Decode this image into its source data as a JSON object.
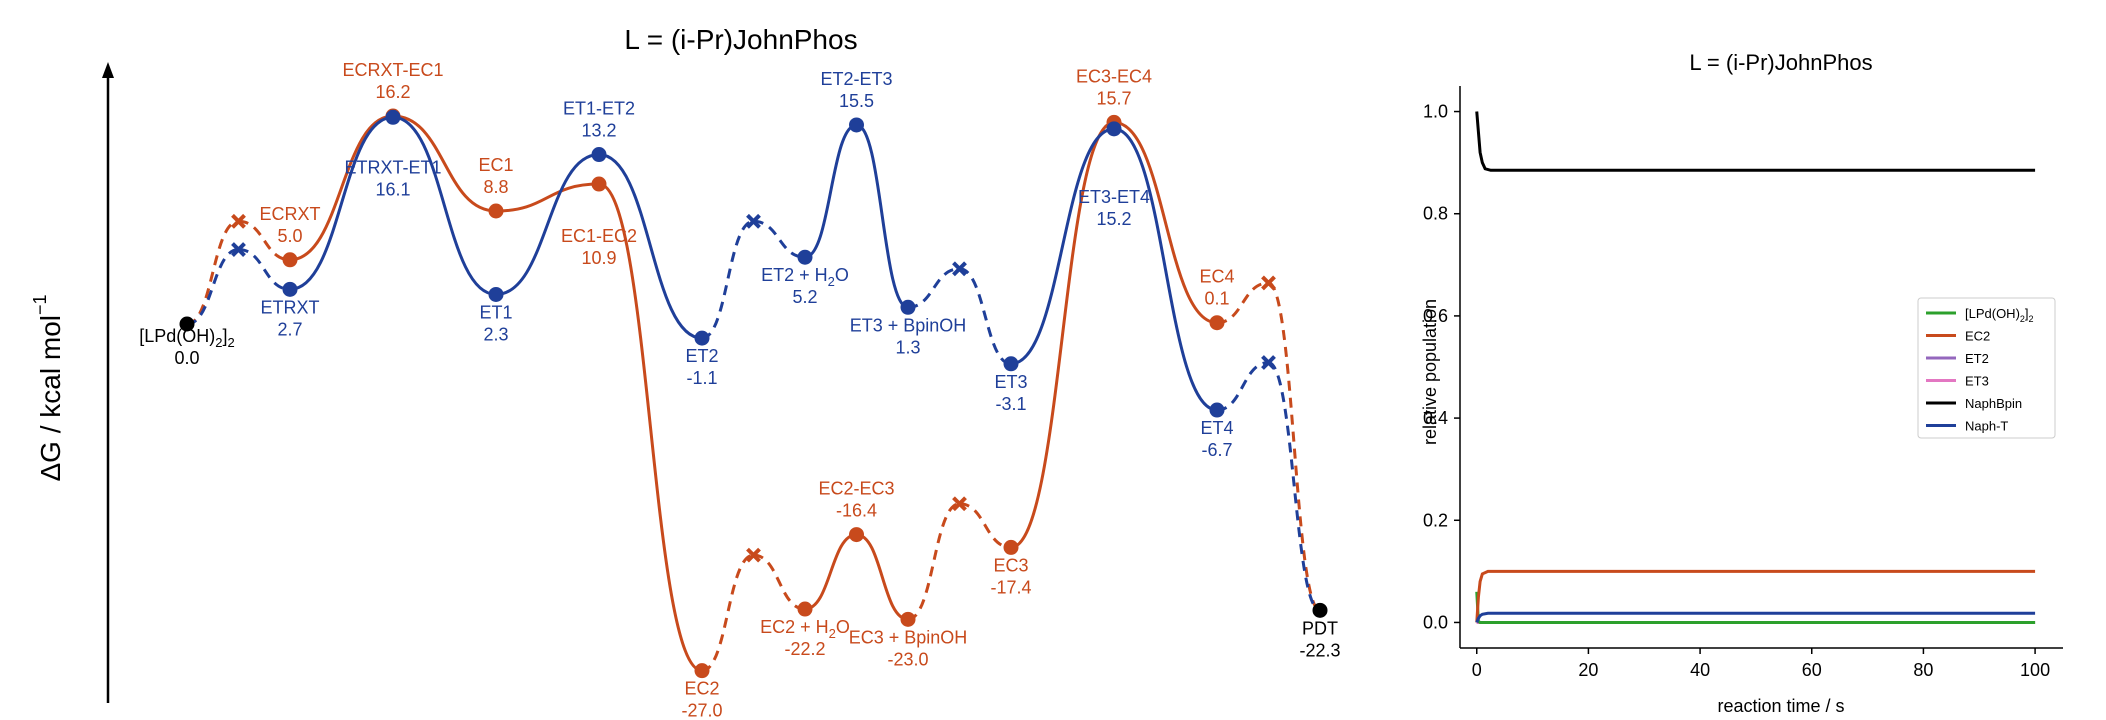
{
  "colors": {
    "orange": "#c84a1c",
    "blue": "#1f3f99",
    "black": "#000000",
    "green": "#2ca02c",
    "purple": "#9467bd",
    "pink": "#e377c2"
  },
  "chart_data": [
    {
      "type": "line",
      "title": "L = (i-Pr)JohnPhos",
      "ylabel": "ΔG / kcal mol",
      "ylabel_superscript": "−1",
      "series": [
        {
          "color": "#c84a1c",
          "points": [
            {
              "id": "start",
              "x": 0,
              "y": 0.0,
              "kind": "point",
              "color": "#000000",
              "name": "[LPd(OH)",
              "sub": "2",
              "tail": "]",
              "sub2": "2",
              "value": "0.0"
            },
            {
              "id": "o_x1",
              "x": 1,
              "y": 8.0,
              "kind": "x"
            },
            {
              "id": "ECRXT",
              "x": 2,
              "y": 5.0,
              "kind": "point",
              "name": "ECRXT",
              "value": "5.0"
            },
            {
              "id": "ECRXT-EC1",
              "x": 4,
              "y": 16.2,
              "kind": "point",
              "name": "ECRXT-EC1",
              "value": "16.2"
            },
            {
              "id": "EC1",
              "x": 6,
              "y": 8.8,
              "kind": "point",
              "name": "EC1",
              "value": "8.8"
            },
            {
              "id": "EC1-EC2",
              "x": 8,
              "y": 10.9,
              "kind": "point",
              "name": "EC1-EC2",
              "value": "10.9"
            },
            {
              "id": "EC2",
              "x": 10,
              "y": -27.0,
              "kind": "point",
              "name": "EC2",
              "value": "-27.0"
            },
            {
              "id": "o_x2",
              "x": 11,
              "y": -18.0,
              "kind": "x"
            },
            {
              "id": "EC2H2O",
              "x": 12,
              "y": -22.2,
              "kind": "point",
              "name": "EC2 + H",
              "sub": "2",
              "tail": "O",
              "value": "-22.2"
            },
            {
              "id": "EC2-EC3",
              "x": 13,
              "y": -16.4,
              "kind": "point",
              "name": "EC2-EC3",
              "value": "-16.4"
            },
            {
              "id": "EC3BpinOH",
              "x": 14,
              "y": -23.0,
              "kind": "point",
              "name": "EC3 + BpinOH",
              "value": "-23.0"
            },
            {
              "id": "o_x3",
              "x": 15,
              "y": -14.0,
              "kind": "x"
            },
            {
              "id": "EC3",
              "x": 16,
              "y": -17.4,
              "kind": "point",
              "name": "EC3",
              "value": "-17.4"
            },
            {
              "id": "EC3-EC4",
              "x": 18,
              "y": 15.7,
              "kind": "point",
              "name": "EC3-EC4",
              "value": "15.7"
            },
            {
              "id": "EC4",
              "x": 20,
              "y": 0.1,
              "kind": "point",
              "name": "EC4",
              "value": "0.1"
            },
            {
              "id": "o_x4",
              "x": 21,
              "y": 3.2,
              "kind": "x"
            },
            {
              "id": "PDT",
              "x": 22,
              "y": -22.3,
              "kind": "point",
              "color": "#000000",
              "name": "PDT",
              "value": "-22.3"
            }
          ]
        },
        {
          "color": "#1f3f99",
          "points": [
            {
              "id": "b_start",
              "x": 0,
              "y": 0.0,
              "kind": "hidden"
            },
            {
              "id": "b_x1",
              "x": 1,
              "y": 5.8,
              "kind": "x"
            },
            {
              "id": "ETRXT",
              "x": 2,
              "y": 2.7,
              "kind": "point",
              "name": "ETRXT",
              "value": "2.7"
            },
            {
              "id": "ETRXT-ET1",
              "x": 4,
              "y": 16.1,
              "kind": "point",
              "name": "ETRXT-ET1",
              "value": "16.1"
            },
            {
              "id": "ET1",
              "x": 6,
              "y": 2.3,
              "kind": "point",
              "name": "ET1",
              "value": "2.3"
            },
            {
              "id": "ET1-ET2",
              "x": 8,
              "y": 13.2,
              "kind": "point",
              "name": "ET1-ET2",
              "value": "13.2"
            },
            {
              "id": "ET2",
              "x": 10,
              "y": -1.1,
              "kind": "point",
              "name": "ET2",
              "value": "-1.1"
            },
            {
              "id": "b_x2",
              "x": 11,
              "y": 8.0,
              "kind": "x"
            },
            {
              "id": "ET2H2O",
              "x": 12,
              "y": 5.2,
              "kind": "point",
              "name": "ET2 + H",
              "sub": "2",
              "tail": "O",
              "value": "5.2"
            },
            {
              "id": "ET2-ET3",
              "x": 13,
              "y": 15.5,
              "kind": "point",
              "name": "ET2-ET3",
              "value": "15.5"
            },
            {
              "id": "ET3BpinOH",
              "x": 14,
              "y": 1.3,
              "kind": "point",
              "name": "ET3 + BpinOH",
              "value": "1.3"
            },
            {
              "id": "b_x3",
              "x": 15,
              "y": 4.3,
              "kind": "x"
            },
            {
              "id": "ET3",
              "x": 16,
              "y": -3.1,
              "kind": "point",
              "name": "ET3",
              "value": "-3.1"
            },
            {
              "id": "ET3-ET4",
              "x": 18,
              "y": 15.2,
              "kind": "point",
              "name": "ET3-ET4",
              "value": "15.2"
            },
            {
              "id": "ET4",
              "x": 20,
              "y": -6.7,
              "kind": "point",
              "name": "ET4",
              "value": "-6.7"
            },
            {
              "id": "b_x4",
              "x": 21,
              "y": -3.0,
              "kind": "x"
            },
            {
              "id": "b_end",
              "x": 22,
              "y": -22.3,
              "kind": "hidden"
            }
          ]
        }
      ]
    },
    {
      "type": "line",
      "title": "L = (i-Pr)JohnPhos",
      "xlabel": "reaction time / s",
      "ylabel": "relative population",
      "xlim": [
        -3,
        105
      ],
      "ylim": [
        -0.05,
        1.05
      ],
      "xticks": [
        0,
        20,
        40,
        60,
        80,
        100
      ],
      "yticks": [
        0.0,
        0.2,
        0.4,
        0.6,
        0.8,
        1.0
      ],
      "xticklabels": [
        "0",
        "20",
        "40",
        "60",
        "80",
        "100"
      ],
      "yticklabels": [
        "0.0",
        "0.2",
        "0.4",
        "0.6",
        "0.8",
        "1.0"
      ],
      "legend_position": "right",
      "series": [
        {
          "name": "[LPd(OH)",
          "name_sub": "2",
          "name_tail": "]",
          "name_sub2": "2",
          "color": "#2ca02c",
          "x": [
            0,
            0.3,
            0.6,
            1.0,
            2.0,
            100
          ],
          "values": [
            0.06,
            0.002,
            0.0,
            0.0,
            0.0,
            0.0
          ]
        },
        {
          "name": "EC2",
          "color": "#c84a1c",
          "x": [
            0,
            0.3,
            0.6,
            1.0,
            2.0,
            100
          ],
          "values": [
            0.0,
            0.05,
            0.08,
            0.095,
            0.1,
            0.1
          ]
        },
        {
          "name": "ET2",
          "color": "#9467bd",
          "x": [
            0,
            100
          ],
          "values": [
            0.0,
            0.0
          ]
        },
        {
          "name": "ET3",
          "color": "#e377c2",
          "x": [
            0,
            100
          ],
          "values": [
            0.0,
            0.0
          ]
        },
        {
          "name": "NaphBpin",
          "color": "#000000",
          "x": [
            0,
            0.3,
            0.6,
            1.0,
            1.5,
            2.5,
            100
          ],
          "values": [
            1.0,
            0.96,
            0.92,
            0.9,
            0.888,
            0.885,
            0.885
          ]
        },
        {
          "name": "Naph-T",
          "color": "#1f3f99",
          "x": [
            0,
            0.3,
            0.6,
            1.0,
            2.0,
            100
          ],
          "values": [
            0.0,
            0.008,
            0.013,
            0.016,
            0.018,
            0.018
          ]
        }
      ]
    }
  ]
}
